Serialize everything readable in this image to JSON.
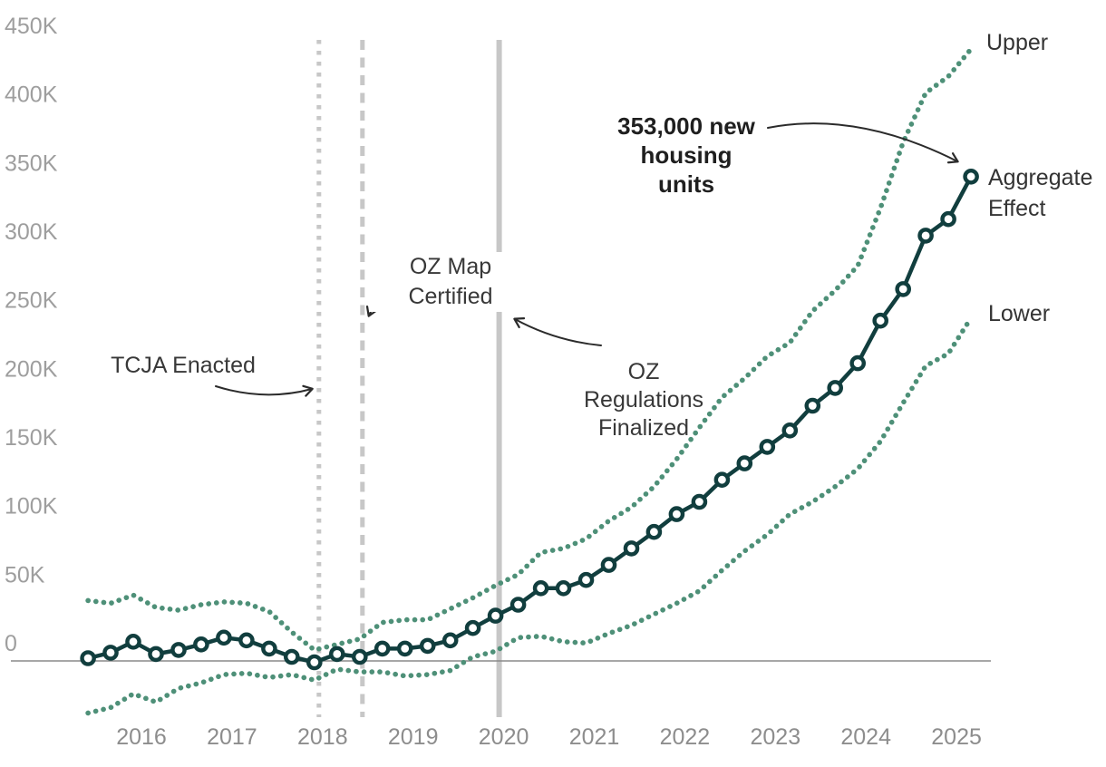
{
  "page": {
    "background": "#ffffff"
  },
  "chart_data": {
    "type": "line",
    "title": "",
    "x_unit": "year (quarterly points)",
    "y_unit": "housing units (thousands)",
    "x": [
      2015.41,
      2015.66,
      2015.91,
      2016.16,
      2016.41,
      2016.66,
      2016.91,
      2017.16,
      2017.41,
      2017.66,
      2017.91,
      2018.16,
      2018.41,
      2018.66,
      2018.91,
      2019.16,
      2019.41,
      2019.66,
      2019.91,
      2020.16,
      2020.41,
      2020.66,
      2020.91,
      2021.16,
      2021.41,
      2021.66,
      2021.91,
      2022.16,
      2022.41,
      2022.66,
      2022.91,
      2023.16,
      2023.41,
      2023.66,
      2023.91,
      2024.16,
      2024.41,
      2024.66,
      2024.91,
      2025.16
    ],
    "series": [
      {
        "name": "Aggregate Effect",
        "role": "main",
        "color": "#113e3e",
        "values": [
          2,
          6,
          14,
          5,
          8,
          12,
          17,
          15,
          9,
          3,
          -1,
          5,
          3,
          9,
          9,
          11,
          15,
          24,
          33,
          41,
          53,
          53,
          59,
          70,
          82,
          94,
          107,
          116,
          132,
          144,
          156,
          168,
          186,
          199,
          217,
          248,
          271,
          310,
          322,
          353
        ]
      },
      {
        "name": "Upper",
        "role": "upper",
        "color": "#4e9078",
        "values": [
          44,
          42,
          48,
          39,
          37,
          41,
          43,
          42,
          36,
          21,
          8,
          12,
          16,
          28,
          30,
          30,
          38,
          46,
          55,
          63,
          79,
          82,
          89,
          102,
          112,
          127,
          147,
          170,
          192,
          206,
          222,
          232,
          255,
          270,
          288,
          330,
          378,
          414,
          426,
          446
        ]
      },
      {
        "name": "Lower",
        "role": "lower",
        "color": "#4e9078",
        "values": [
          -38,
          -34,
          -24,
          -30,
          -20,
          -16,
          -10,
          -9,
          -12,
          -10,
          -14,
          -6,
          -8,
          -8,
          -11,
          -10,
          -7,
          3,
          7,
          17,
          18,
          14,
          13,
          20,
          26,
          34,
          42,
          51,
          66,
          80,
          92,
          107,
          116,
          127,
          140,
          160,
          188,
          215,
          224,
          250
        ]
      }
    ],
    "y_ticks": [
      {
        "label": "450K",
        "value": 450
      },
      {
        "label": "400K",
        "value": 400
      },
      {
        "label": "350K",
        "value": 350
      },
      {
        "label": "300K",
        "value": 300
      },
      {
        "label": "250K",
        "value": 250
      },
      {
        "label": "200K",
        "value": 200
      },
      {
        "label": "150K",
        "value": 150
      },
      {
        "label": "100K",
        "value": 100
      },
      {
        "label": "50K",
        "value": 50
      },
      {
        "label": "0",
        "value": 0
      }
    ],
    "x_ticks": [
      {
        "label": "2016",
        "value": 2016
      },
      {
        "label": "2017",
        "value": 2017
      },
      {
        "label": "2018",
        "value": 2018
      },
      {
        "label": "2019",
        "value": 2019
      },
      {
        "label": "2020",
        "value": 2020
      },
      {
        "label": "2021",
        "value": 2021
      },
      {
        "label": "2022",
        "value": 2022
      },
      {
        "label": "2023",
        "value": 2023
      },
      {
        "label": "2024",
        "value": 2024
      },
      {
        "label": "2025",
        "value": 2025
      }
    ],
    "events": [
      {
        "label": "TCJA Enacted",
        "year": 2017.96,
        "style": "dotted"
      },
      {
        "label": "OZ Map\nCertified",
        "year": 2018.44,
        "style": "dashed"
      },
      {
        "label": "OZ\nRegulations\nFinalized",
        "year": 2019.95,
        "style": "solid"
      }
    ],
    "annotation": {
      "text": "353,000 new\nhousing\nunits",
      "target_value": 353
    },
    "axis_range": {
      "x": [
        2015.2,
        2025.6
      ],
      "y_thousands": [
        -60,
        460
      ]
    },
    "legend_position": "right-edge-direct-labels",
    "grid": "off",
    "colors": {
      "main_line": "#113e3e",
      "band_dots": "#4e9078",
      "marker_fill": "#ffffff",
      "event_lines": "#c7c7c7",
      "zero_line": "#8a8a8a",
      "axis_text": "#9e9e9e",
      "annotation_text": "#1f1f1f",
      "label_text": "#383838"
    }
  }
}
